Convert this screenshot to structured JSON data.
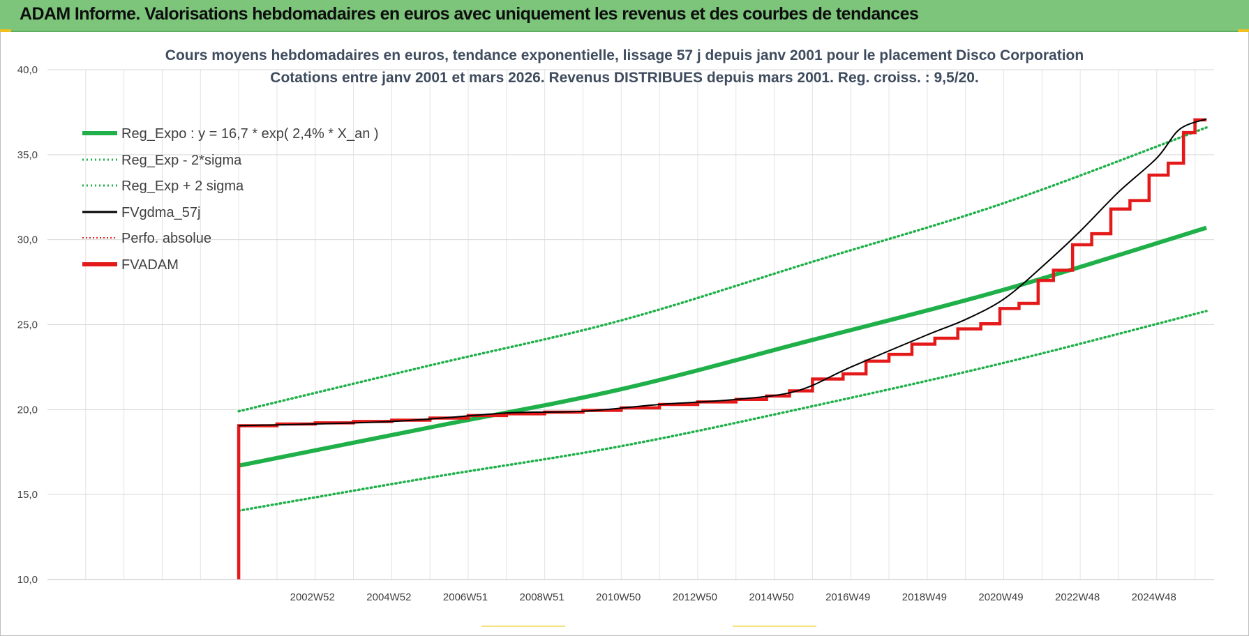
{
  "header": {
    "title": "ADAM Informe. Valorisations hebdomadaires en euros avec uniquement les revenus et des courbes de tendances"
  },
  "colors": {
    "banner": "#7cc57b",
    "reg_expo": "#1fb04a",
    "sigma_bands": "#1fb04a",
    "fvgdma": "#000000",
    "perfo": "#e02020",
    "fvadam": "#e41a1a"
  },
  "chart_data": {
    "type": "line",
    "title": [
      "Cours moyens hebdomadaires en euros, tendance exponentielle, lissage 57 j depuis janv 2001 pour le placement Disco Corporation",
      "Cotations entre janv 2001 et mars 2026. Revenus DISTRIBUES depuis mars 2001. Reg. croiss. : 9,5/20."
    ],
    "xlabel": "",
    "ylabel": "",
    "x_range": [
      1996,
      2026.5
    ],
    "ylim": [
      10,
      40
    ],
    "y_ticks": [
      "10,0",
      "15,0",
      "20,0",
      "25,0",
      "30,0",
      "35,0",
      "40,0"
    ],
    "x_tick_labels": [
      {
        "label": "2002W52",
        "x": 2003.0
      },
      {
        "label": "2004W52",
        "x": 2005.0
      },
      {
        "label": "2006W51",
        "x": 2007.0
      },
      {
        "label": "2008W51",
        "x": 2009.0
      },
      {
        "label": "2010W50",
        "x": 2011.0
      },
      {
        "label": "2012W50",
        "x": 2013.0
      },
      {
        "label": "2014W50",
        "x": 2015.0
      },
      {
        "label": "2016W49",
        "x": 2017.0
      },
      {
        "label": "2018W49",
        "x": 2019.0
      },
      {
        "label": "2020W49",
        "x": 2021.0
      },
      {
        "label": "2022W48",
        "x": 2023.0
      },
      {
        "label": "2024W48",
        "x": 2025.0
      }
    ],
    "grid": true,
    "legend_position": "top-left",
    "series": [
      {
        "name": "Reg_Expo : y = 16,7 * exp( 2,4% *  X_an )",
        "style": "thick-solid",
        "color": "#1fb04a",
        "points": [
          [
            2001.0,
            16.7
          ],
          [
            2006.0,
            18.95
          ],
          [
            2011.0,
            21.2
          ],
          [
            2016.0,
            24.1
          ],
          [
            2021.0,
            27.05
          ],
          [
            2026.3,
            30.7
          ]
        ]
      },
      {
        "name": "Reg_Exp - 2*sigma",
        "style": "dotted",
        "color": "#1fb04a",
        "points": [
          [
            2001.0,
            14.05
          ],
          [
            2006.0,
            16.0
          ],
          [
            2011.0,
            17.85
          ],
          [
            2016.0,
            20.2
          ],
          [
            2021.0,
            22.75
          ],
          [
            2026.3,
            25.8
          ]
        ]
      },
      {
        "name": "Reg_Exp + 2 sigma",
        "style": "dotted",
        "color": "#1fb04a",
        "points": [
          [
            2001.0,
            19.9
          ],
          [
            2006.0,
            22.6
          ],
          [
            2011.0,
            25.25
          ],
          [
            2016.0,
            28.7
          ],
          [
            2021.0,
            32.15
          ],
          [
            2026.3,
            36.6
          ]
        ]
      },
      {
        "name": "FVgdma_57j",
        "style": "thin-solid",
        "color": "#000000",
        "points": [
          [
            2001.0,
            19.05
          ],
          [
            2005.0,
            19.3
          ],
          [
            2008.0,
            19.8
          ],
          [
            2010.0,
            19.9
          ],
          [
            2012.0,
            20.3
          ],
          [
            2014.0,
            20.6
          ],
          [
            2015.6,
            21.1
          ],
          [
            2017.0,
            22.5
          ],
          [
            2019.0,
            24.4
          ],
          [
            2020.0,
            25.3
          ],
          [
            2021.0,
            26.5
          ],
          [
            2022.0,
            28.4
          ],
          [
            2023.0,
            30.5
          ],
          [
            2024.0,
            32.8
          ],
          [
            2025.0,
            34.8
          ],
          [
            2025.6,
            36.5
          ],
          [
            2026.3,
            37.1
          ]
        ]
      },
      {
        "name": "Perfo. absolue",
        "style": "dotted",
        "color": "#e02020",
        "points": []
      },
      {
        "name": "FVADAM",
        "style": "thick-step",
        "color": "#e41a1a",
        "start": [
          2001.0,
          10.0
        ],
        "steps": [
          [
            2001.0,
            19.05
          ],
          [
            2002.0,
            19.15
          ],
          [
            2003.0,
            19.22
          ],
          [
            2004.0,
            19.3
          ],
          [
            2005.0,
            19.38
          ],
          [
            2006.0,
            19.5
          ],
          [
            2007.0,
            19.65
          ],
          [
            2008.0,
            19.75
          ],
          [
            2009.0,
            19.85
          ],
          [
            2010.0,
            19.95
          ],
          [
            2011.0,
            20.1
          ],
          [
            2012.0,
            20.3
          ],
          [
            2013.0,
            20.45
          ],
          [
            2014.0,
            20.6
          ],
          [
            2014.8,
            20.8
          ],
          [
            2015.4,
            21.1
          ],
          [
            2016.0,
            21.8
          ],
          [
            2016.8,
            22.1
          ],
          [
            2017.4,
            22.85
          ],
          [
            2018.0,
            23.25
          ],
          [
            2018.6,
            23.85
          ],
          [
            2019.2,
            24.2
          ],
          [
            2019.8,
            24.75
          ],
          [
            2020.4,
            25.05
          ],
          [
            2020.9,
            25.95
          ],
          [
            2021.4,
            26.25
          ],
          [
            2021.9,
            27.6
          ],
          [
            2022.3,
            28.2
          ],
          [
            2022.8,
            29.7
          ],
          [
            2023.3,
            30.35
          ],
          [
            2023.8,
            31.8
          ],
          [
            2024.3,
            32.3
          ],
          [
            2024.8,
            33.8
          ],
          [
            2025.3,
            34.5
          ],
          [
            2025.7,
            36.3
          ],
          [
            2026.0,
            37.05
          ]
        ],
        "end_x": 2026.3
      }
    ]
  }
}
